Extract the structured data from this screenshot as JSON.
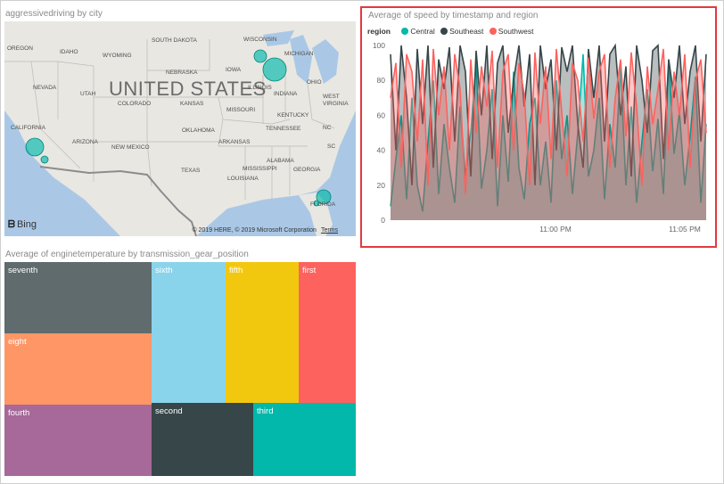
{
  "map_visual": {
    "title": "aggressivedriving by city",
    "country_label": "UNITED STATES",
    "state_labels": [
      "OREGON",
      "IDAHO",
      "WYOMING",
      "SOUTH DAKOTA",
      "WISCONSIN",
      "MICHIGAN",
      "NEBRASKA",
      "IOWA",
      "NEVADA",
      "UTAH",
      "COLORADO",
      "KANSAS",
      "MISSOURI",
      "ILLINOIS",
      "INDIANA",
      "OHIO",
      "WEST",
      "VIRGINIA",
      "KENTUCKY",
      "CALIFORNIA",
      "ARIZONA",
      "NEW MEXICO",
      "OKLAHOMA",
      "ARKANSAS",
      "TENNESSEE",
      "NC",
      "SC",
      "TEXAS",
      "MISSISSIPPI",
      "ALABAMA",
      "GEORGIA",
      "LOUISIANA",
      "FLORIDA"
    ],
    "logo": "Bing",
    "credit": "© 2019 HERE, © 2019 Microsoft Corporation",
    "terms": "Terms"
  },
  "line_visual": {
    "title": "Average of speed by timestamp and region",
    "legend_title": "region",
    "colors": {
      "Central": "#01b8aa",
      "Southeast": "#374649",
      "Southwest": "#fd625e"
    }
  },
  "chart_data": {
    "type": "area",
    "title": "Average of speed by timestamp and region",
    "xlabel": "",
    "ylabel": "",
    "ylim": [
      0,
      100
    ],
    "yticks": [
      0,
      20,
      40,
      60,
      80,
      100
    ],
    "xticks": [
      "11:00 PM",
      "11:05 PM"
    ],
    "series": [
      {
        "name": "Central",
        "values": [
          8,
          35,
          60,
          12,
          70,
          20,
          5,
          45,
          80,
          15,
          55,
          30,
          10,
          65,
          25,
          50,
          90,
          18,
          40,
          75,
          8,
          60,
          22,
          85,
          30,
          12,
          55,
          70,
          20,
          45,
          10,
          80,
          35,
          60,
          15,
          50,
          95,
          25,
          40,
          70,
          12,
          55,
          30,
          88,
          20,
          65,
          10,
          45,
          75,
          28,
          58,
          15,
          92,
          38,
          62,
          20,
          48,
          82,
          10,
          55
        ]
      },
      {
        "name": "Southeast",
        "values": [
          95,
          40,
          100,
          70,
          20,
          98,
          55,
          100,
          30,
          92,
          75,
          99,
          45,
          100,
          85,
          25,
          97,
          60,
          100,
          35,
          90,
          100,
          50,
          80,
          100,
          65,
          95,
          20,
          100,
          75,
          92,
          40,
          99,
          85,
          100,
          55,
          30,
          98,
          70,
          100,
          45,
          95,
          100,
          60,
          88,
          25,
          100,
          80,
          50,
          97,
          100,
          35,
          92,
          70,
          100,
          55,
          85,
          100,
          45,
          95
        ]
      },
      {
        "name": "Southwest",
        "values": [
          70,
          90,
          30,
          95,
          85,
          45,
          92,
          20,
          98,
          60,
          88,
          40,
          95,
          75,
          15,
          92,
          50,
          88,
          65,
          97,
          30,
          85,
          95,
          40,
          90,
          72,
          20,
          96,
          55,
          88,
          35,
          98,
          62,
          25,
          90,
          80,
          45,
          93,
          58,
          85,
          95,
          30,
          70,
          92,
          48,
          96,
          65,
          20,
          88,
          55,
          75,
          98,
          40,
          85,
          60,
          95,
          30,
          80,
          92,
          50
        ]
      }
    ],
    "series_colors": [
      "#01b8aa",
      "#374649",
      "#fd625e"
    ]
  },
  "treemap_visual": {
    "title": "Average of enginetemperature by transmission_gear_position",
    "tiles": [
      {
        "label": "seventh",
        "color": "#5f6b6d"
      },
      {
        "label": "eight",
        "color": "#fe9666"
      },
      {
        "label": "fourth",
        "color": "#a66999"
      },
      {
        "label": "sixth",
        "color": "#8ad4eb"
      },
      {
        "label": "fifth",
        "color": "#f2c80f"
      },
      {
        "label": "first",
        "color": "#fd625e"
      },
      {
        "label": "second",
        "color": "#374649"
      },
      {
        "label": "third",
        "color": "#01b8aa"
      }
    ]
  }
}
